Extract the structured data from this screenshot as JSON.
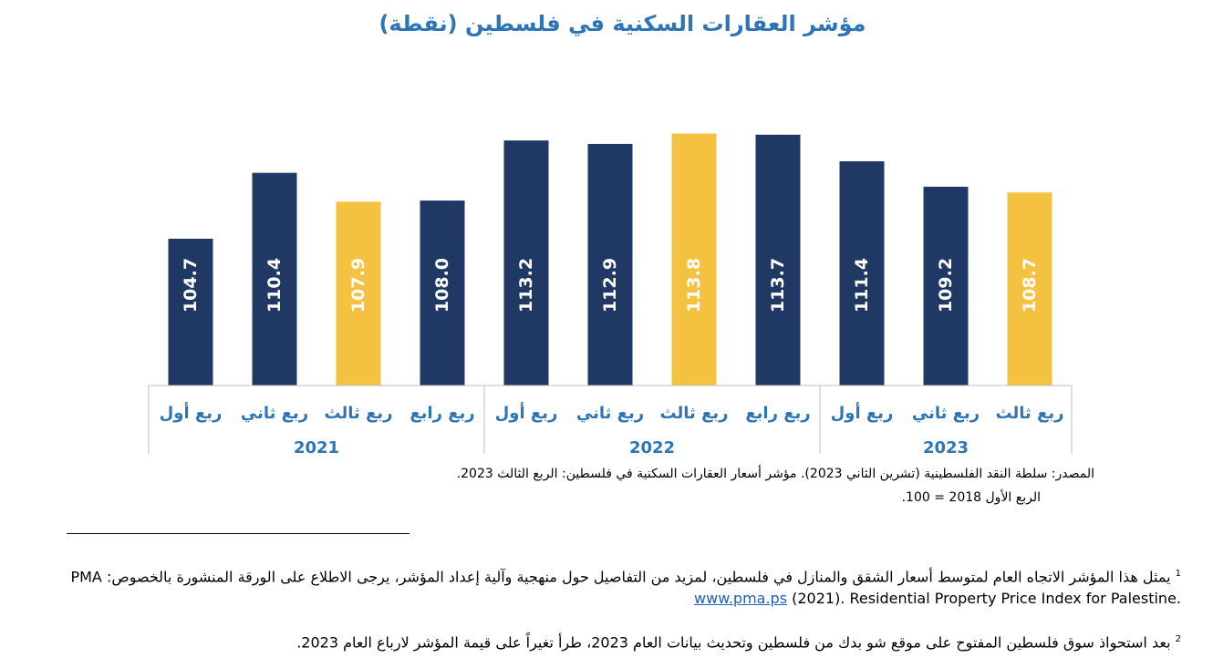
{
  "chart_data": {
    "type": "bar",
    "title": "مؤشر العقارات السكنية في فلسطين (نقطة)",
    "categories": [
      "ربع أول",
      "ربع ثاني",
      "ربع ثالث",
      "ربع رابع",
      "ربع أول",
      "ربع ثاني",
      "ربع ثالث",
      "ربع رابع",
      "ربع أول",
      "ربع ثاني",
      "ربع ثالث"
    ],
    "years": [
      "2021",
      "2022",
      "2023"
    ],
    "values": [
      104.7,
      110.4,
      107.9,
      108.0,
      113.2,
      112.9,
      113.8,
      113.7,
      111.4,
      109.2,
      108.7
    ],
    "value_labels": [
      "104.7",
      "110.4",
      "107.9",
      "108.0",
      "113.2",
      "112.9",
      "113.8",
      "113.7",
      "111.4",
      "109.2",
      "108.7"
    ],
    "bar_colors": [
      "#203864",
      "#203864",
      "#f4c140",
      "#203864",
      "#203864",
      "#203864",
      "#f4c140",
      "#203864",
      "#203864",
      "#203864",
      "#f4c140"
    ],
    "axis_color": "#bfbfbf",
    "label_color": "#2e75b6",
    "ylim": [
      92,
      114
    ]
  },
  "source": {
    "line1": "المصدر: سلطة النقد الفلسطينية (تشرين الثاني 2023). مؤشر أسعار العقارات السكنية في فلسطين: الربع الثالث 2023.",
    "line2": "الربع الأول 2018 = 100."
  },
  "footnotes": {
    "fn1_mark": "1",
    "fn1_text": "يمثل هذا المؤشر الاتجاه العام لمتوسط أسعار الشقق والمنازل في فلسطين، لمزيد من التفاصيل حول منهجية وآلية إعداد المؤشر، يرجى الاطلاع على الورقة المنشورة بالخصوص:",
    "fn1_citation": "PMA (2021). Residential Property Price Index for Palestine.",
    "fn1_link": "www.pma.ps",
    "fn2_mark": "2",
    "fn2_text": "بعد استحواذ سوق فلسطين المفتوح على موقع شو بدك من فلسطين وتحديث بيانات العام 2023، طرأ تغيراً على قيمة المؤشر لارباع العام 2023."
  }
}
